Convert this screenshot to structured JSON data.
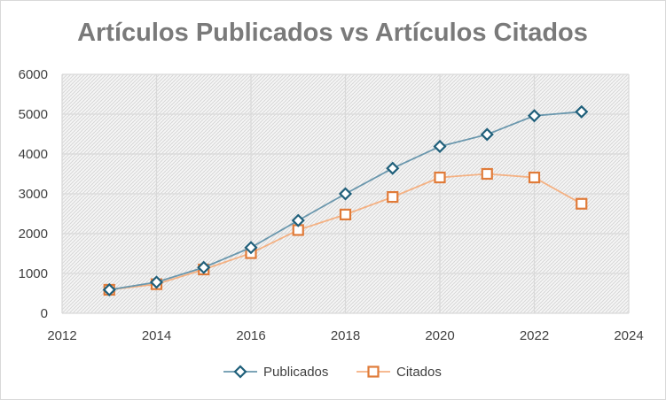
{
  "chart_data": {
    "type": "line",
    "title": "Artículos Publicados vs Artículos Citados",
    "xlabel": "",
    "ylabel": "",
    "x": [
      2013,
      2014,
      2015,
      2016,
      2017,
      2018,
      2019,
      2020,
      2021,
      2022,
      2023
    ],
    "series": [
      {
        "name": "Publicados",
        "marker": "diamond",
        "color": "#6a97ad",
        "marker_color": "#1f5f7a",
        "values": [
          590,
          780,
          1150,
          1650,
          2330,
          3000,
          3640,
          4190,
          4490,
          4960,
          5060
        ]
      },
      {
        "name": "Citados",
        "marker": "square",
        "color": "#f4b183",
        "marker_color": "#e07b39",
        "values": [
          590,
          730,
          1100,
          1510,
          2090,
          2480,
          2920,
          3410,
          3500,
          3410,
          2750
        ]
      }
    ],
    "xlim": [
      2012,
      2024
    ],
    "ylim": [
      0,
      6000
    ],
    "x_ticks": [
      "2012",
      "2014",
      "2016",
      "2018",
      "2020",
      "2022",
      "2024"
    ],
    "y_ticks": [
      "0",
      "1000",
      "2000",
      "3000",
      "4000",
      "5000",
      "6000"
    ],
    "grid": true,
    "legend_position": "bottom"
  }
}
